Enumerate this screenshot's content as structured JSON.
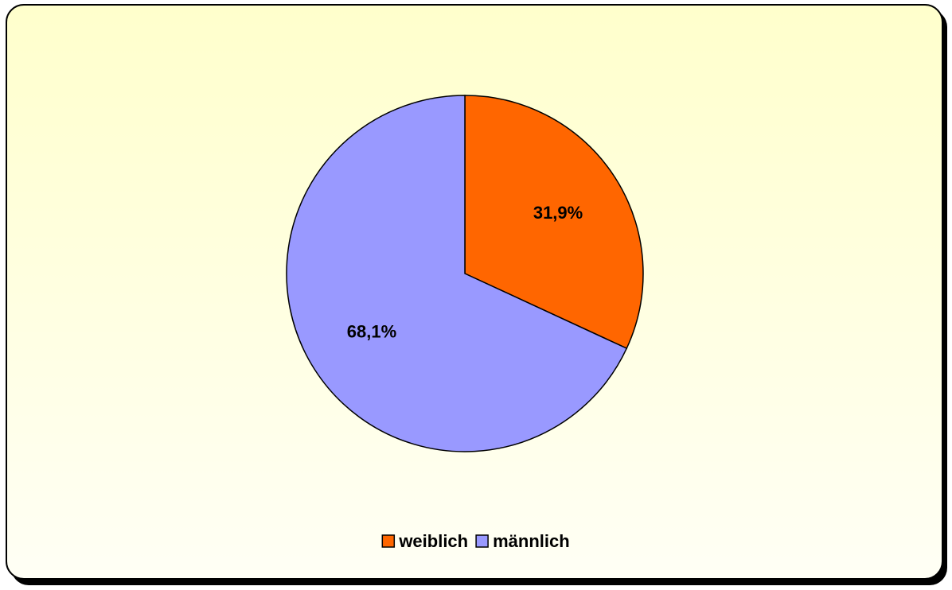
{
  "chart_data": {
    "type": "pie",
    "categories": [
      "weiblich",
      "männlich"
    ],
    "values": [
      31.9,
      68.1
    ],
    "value_labels": [
      "31,9%",
      "68,1%"
    ],
    "colors": [
      "#ff6600",
      "#9999ff"
    ],
    "legend": "bottom"
  }
}
